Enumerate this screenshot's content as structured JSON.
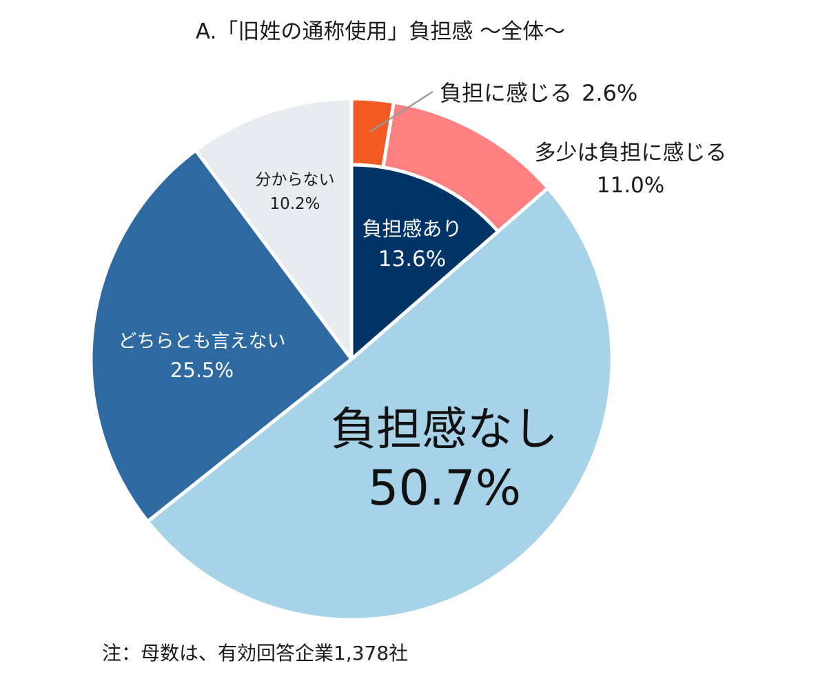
{
  "chart_data": {
    "type": "pie",
    "title": "A.「旧姓の通称使用」負担感 ～全体～",
    "note": "注：母数は、有効回答企業1,378社",
    "start_angle_deg": 0,
    "direction": "clockwise",
    "slices": [
      {
        "key": "heavy",
        "label": "負担に感じる",
        "value": 2.6,
        "value_label": "2.6%",
        "color": "#f15a22"
      },
      {
        "key": "some",
        "label": "多少は負担に感じる",
        "value": 11.0,
        "value_label": "11.0%",
        "color": "#ff8080"
      },
      {
        "key": "none",
        "label": "負担感なし",
        "value": 50.7,
        "value_label": "50.7%",
        "color": "#a6d3e8"
      },
      {
        "key": "neither",
        "label": "どちらとも言えない",
        "value": 25.5,
        "value_label": "25.5%",
        "color": "#2e6aa1"
      },
      {
        "key": "unknown",
        "label": "分からない",
        "value": 10.2,
        "value_label": "10.2%",
        "color": "#e8ebef"
      }
    ],
    "inner_group": {
      "label": "負担感あり",
      "value": 13.6,
      "value_label": "13.6%",
      "color": "#003366",
      "covers": [
        "heavy",
        "some"
      ]
    }
  }
}
